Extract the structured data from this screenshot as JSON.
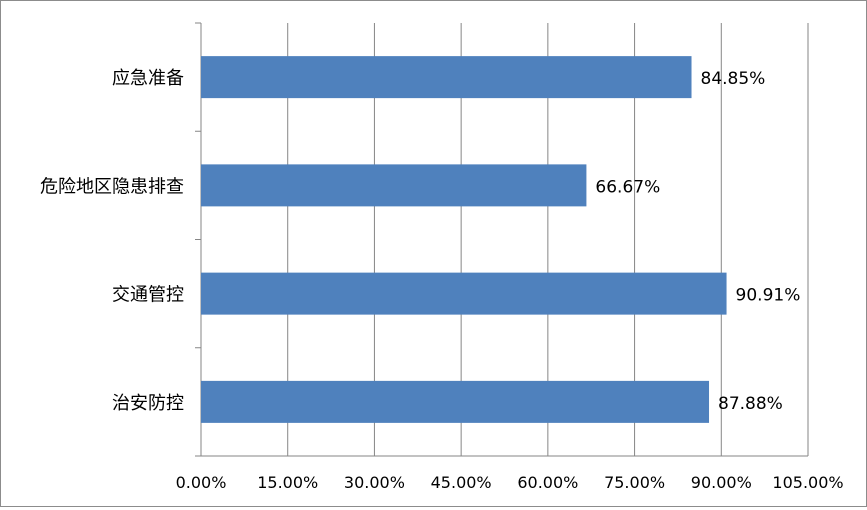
{
  "chart_data": {
    "type": "bar",
    "orientation": "horizontal",
    "categories": [
      "应急准备",
      "危险地区隐患排查",
      "交通管控",
      "治安防控"
    ],
    "values": [
      84.85,
      66.67,
      90.91,
      87.88
    ],
    "value_labels": [
      "84.85%",
      "66.67%",
      "90.91%",
      "87.88%"
    ],
    "x_ticks": [
      0,
      15,
      30,
      45,
      60,
      75,
      90,
      105
    ],
    "x_tick_labels": [
      "0.00%",
      "15.00%",
      "30.00%",
      "45.00%",
      "60.00%",
      "75.00%",
      "90.00%",
      "105.00%"
    ],
    "xlim": [
      0,
      105
    ],
    "title": "",
    "xlabel": "",
    "ylabel": "",
    "grid": "vertical",
    "legend": "none",
    "bar_color": "#4f81bd",
    "grid_color": "#868686"
  }
}
